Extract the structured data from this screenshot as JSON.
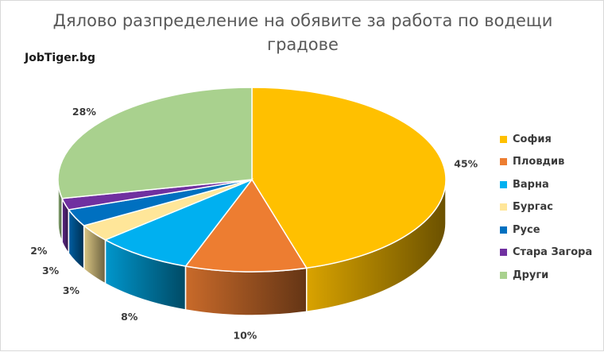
{
  "chart_data": {
    "type": "pie",
    "title": "Дялово разпределение на обявите за работа по водещи градове",
    "title_lines": [
      "Дялово разпределение на обявите за работа по водещи",
      "градове"
    ],
    "source_label": "JobTiger.bg",
    "categories": [
      "София",
      "Пловдив",
      "Варна",
      "Бургас",
      "Русе",
      "Стара Загора",
      "Други"
    ],
    "values": [
      45,
      10,
      8,
      3,
      3,
      2,
      28
    ],
    "data_labels": [
      "45%",
      "10%",
      "8%",
      "3%",
      "3%",
      "2%",
      "28%"
    ],
    "colors": [
      "#ffc000",
      "#ed7d31",
      "#00b0f0",
      "#ffe699",
      "#0070c0",
      "#7030a0",
      "#a9d18e"
    ],
    "legend_position": "right",
    "style": "3d-pie"
  }
}
